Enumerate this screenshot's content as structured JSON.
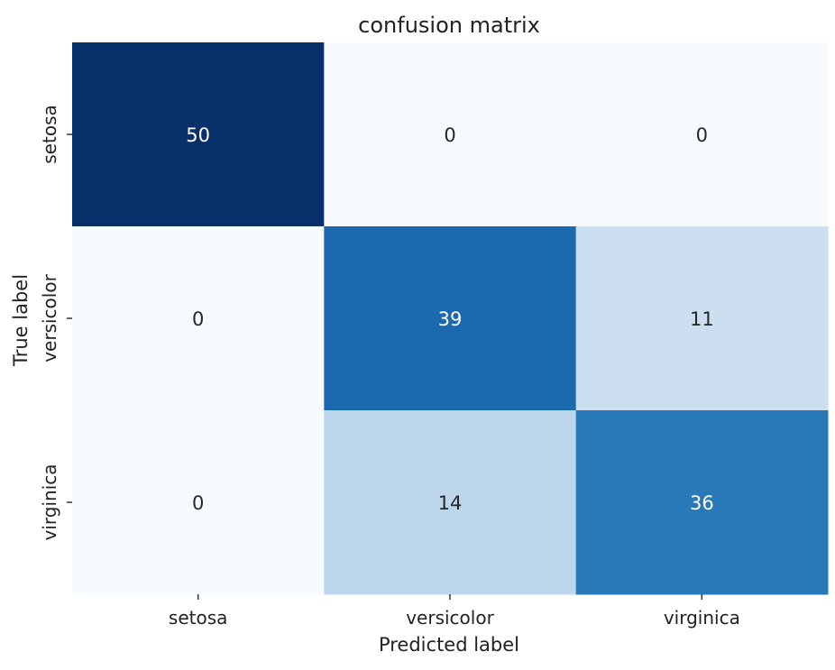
{
  "chart_data": {
    "type": "heatmap",
    "title": "confusion matrix",
    "xlabel": "Predicted label",
    "ylabel": "True label",
    "x_categories": [
      "setosa",
      "versicolor",
      "virginica"
    ],
    "y_categories": [
      "setosa",
      "versicolor",
      "virginica"
    ],
    "values": [
      [
        50,
        0,
        0
      ],
      [
        0,
        39,
        11
      ],
      [
        0,
        14,
        36
      ]
    ],
    "value_range": [
      0,
      50
    ],
    "colormap": "Blues",
    "colorbar": false,
    "annotations": true,
    "grid": false
  }
}
